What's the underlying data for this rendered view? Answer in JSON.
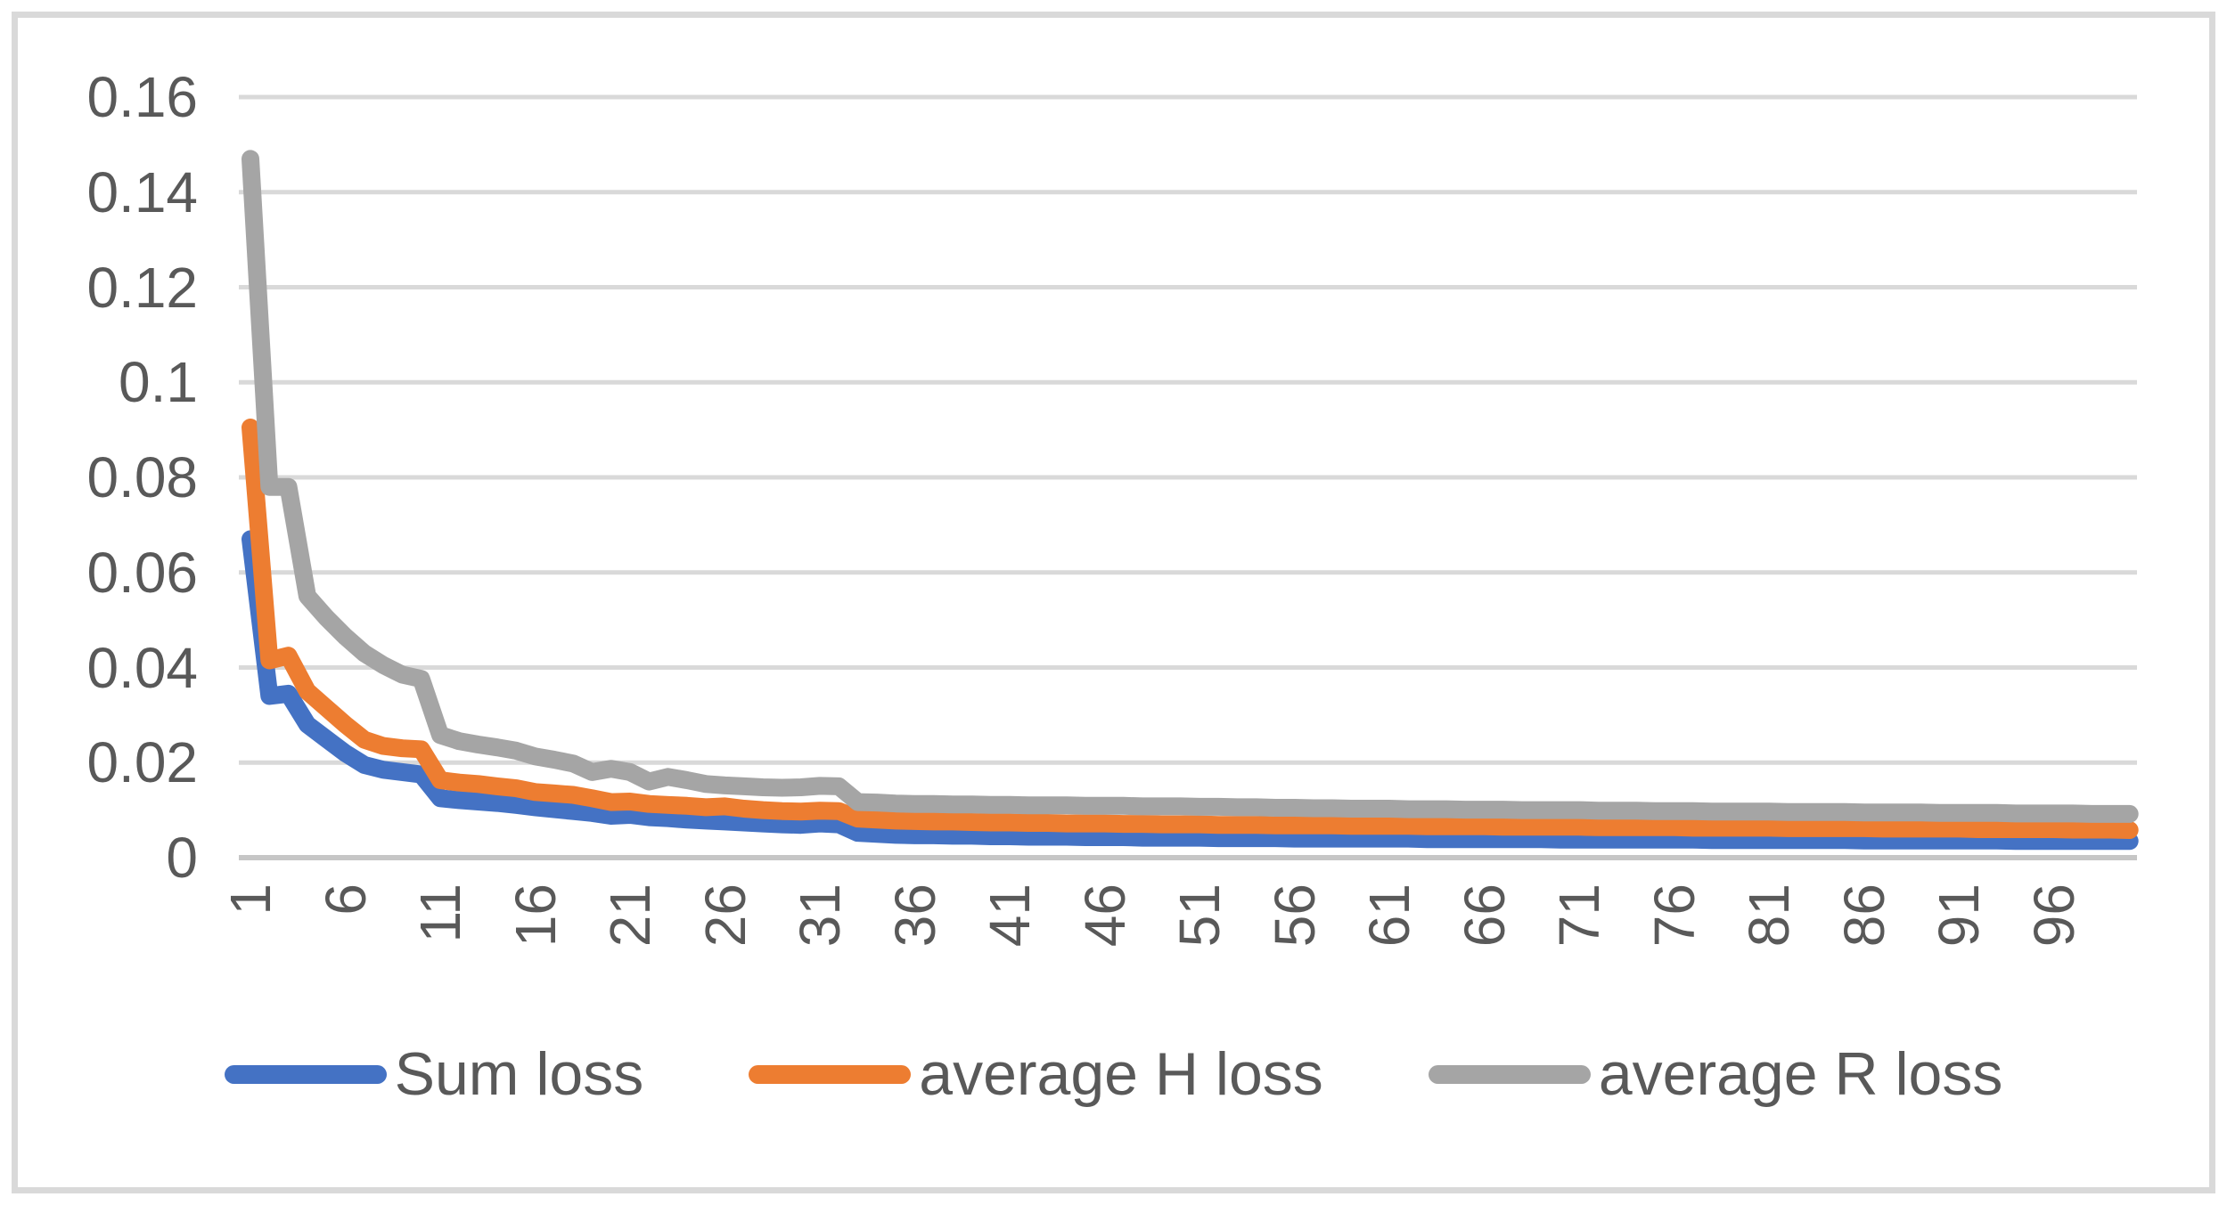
{
  "chart_data": {
    "type": "line",
    "title": "",
    "xlabel": "",
    "ylabel": "",
    "x_start": 1,
    "x_step": 1,
    "x_count": 100,
    "x_tick_labels": [
      "1",
      "6",
      "11",
      "16",
      "21",
      "26",
      "31",
      "36",
      "41",
      "46",
      "51",
      "56",
      "61",
      "66",
      "71",
      "76",
      "81",
      "86",
      "91",
      "96"
    ],
    "y_tick_labels": [
      "0",
      "0.02",
      "0.04",
      "0.06",
      "0.08",
      "0.1",
      "0.12",
      "0.14",
      "0.16"
    ],
    "ylim": [
      0,
      0.16
    ],
    "grid": "horizontal",
    "legend_position": "bottom",
    "background_color": "#FFFFFF",
    "gridline_color": "#D9D9D9",
    "axis_line_color": "#C6C6C6",
    "axis_text_color": "#595959",
    "frame_border_color": "#D9D9D9",
    "series": [
      {
        "name": "Sum loss",
        "color": "#4472C4",
        "values": [
          0.067,
          0.034,
          0.0345,
          0.028,
          0.025,
          0.022,
          0.0195,
          0.0185,
          0.018,
          0.0175,
          0.0125,
          0.0121,
          0.0118,
          0.0115,
          0.0111,
          0.0106,
          0.0102,
          0.0098,
          0.0094,
          0.0088,
          0.009,
          0.0085,
          0.0083,
          0.008,
          0.0078,
          0.0076,
          0.0074,
          0.0072,
          0.007,
          0.0069,
          0.0072,
          0.007,
          0.0052,
          0.005,
          0.0048,
          0.0047,
          0.0047,
          0.0046,
          0.0046,
          0.0045,
          0.0045,
          0.0044,
          0.0044,
          0.0044,
          0.0043,
          0.0043,
          0.0043,
          0.0042,
          0.0042,
          0.0042,
          0.0042,
          0.0041,
          0.0041,
          0.0041,
          0.0041,
          0.004,
          0.004,
          0.004,
          0.004,
          0.004,
          0.004,
          0.004,
          0.0039,
          0.0039,
          0.0039,
          0.0039,
          0.0039,
          0.0039,
          0.0039,
          0.0038,
          0.0038,
          0.0038,
          0.0038,
          0.0038,
          0.0038,
          0.0038,
          0.0038,
          0.0037,
          0.0037,
          0.0037,
          0.0037,
          0.0037,
          0.0037,
          0.0037,
          0.0037,
          0.0036,
          0.0036,
          0.0036,
          0.0036,
          0.0036,
          0.0036,
          0.0036,
          0.0036,
          0.0035,
          0.0035,
          0.0035,
          0.0035,
          0.0035,
          0.0035,
          0.0035
        ]
      },
      {
        "name": "average H loss",
        "color": "#ED7D31",
        "values": [
          0.0905,
          0.0415,
          0.0425,
          0.035,
          0.0315,
          0.028,
          0.0248,
          0.0235,
          0.023,
          0.0228,
          0.0163,
          0.0158,
          0.0155,
          0.015,
          0.0146,
          0.0138,
          0.0135,
          0.0132,
          0.0125,
          0.0117,
          0.0118,
          0.0113,
          0.0111,
          0.0109,
          0.0106,
          0.0108,
          0.0103,
          0.01,
          0.0098,
          0.0097,
          0.0099,
          0.0098,
          0.0082,
          0.008,
          0.0078,
          0.0077,
          0.0076,
          0.0076,
          0.0075,
          0.0074,
          0.0074,
          0.0073,
          0.0073,
          0.0072,
          0.0072,
          0.0072,
          0.0071,
          0.0071,
          0.007,
          0.007,
          0.007,
          0.0069,
          0.0069,
          0.0069,
          0.0068,
          0.0068,
          0.0068,
          0.0068,
          0.0067,
          0.0067,
          0.0067,
          0.0067,
          0.0066,
          0.0066,
          0.0066,
          0.0066,
          0.0065,
          0.0065,
          0.0065,
          0.0065,
          0.0065,
          0.0064,
          0.0064,
          0.0064,
          0.0064,
          0.0064,
          0.0063,
          0.0063,
          0.0063,
          0.0063,
          0.0063,
          0.0062,
          0.0062,
          0.0062,
          0.0062,
          0.0062,
          0.0061,
          0.0061,
          0.0061,
          0.0061,
          0.0061,
          0.006,
          0.006,
          0.006,
          0.006,
          0.006,
          0.0059,
          0.0059,
          0.0059,
          0.0058
        ]
      },
      {
        "name": "average R loss",
        "color": "#A5A5A5",
        "values": [
          0.147,
          0.078,
          0.078,
          0.055,
          0.0505,
          0.0465,
          0.043,
          0.0405,
          0.0385,
          0.0376,
          0.0258,
          0.0245,
          0.0238,
          0.0232,
          0.0225,
          0.0213,
          0.0206,
          0.0198,
          0.018,
          0.0187,
          0.018,
          0.016,
          0.017,
          0.0163,
          0.0155,
          0.0152,
          0.015,
          0.0148,
          0.0147,
          0.0148,
          0.0151,
          0.015,
          0.0117,
          0.0116,
          0.0114,
          0.0113,
          0.0113,
          0.0112,
          0.0112,
          0.0111,
          0.0111,
          0.011,
          0.011,
          0.011,
          0.0109,
          0.0109,
          0.0109,
          0.0108,
          0.0108,
          0.0108,
          0.0107,
          0.0107,
          0.0106,
          0.0106,
          0.0105,
          0.0105,
          0.0104,
          0.0104,
          0.0103,
          0.0103,
          0.0103,
          0.0102,
          0.0102,
          0.0102,
          0.0101,
          0.0101,
          0.0101,
          0.01,
          0.01,
          0.01,
          0.01,
          0.0099,
          0.0099,
          0.0099,
          0.0098,
          0.0098,
          0.0098,
          0.0097,
          0.0097,
          0.0097,
          0.0097,
          0.0096,
          0.0096,
          0.0096,
          0.0096,
          0.0095,
          0.0095,
          0.0095,
          0.0095,
          0.0094,
          0.0094,
          0.0094,
          0.0094,
          0.0093,
          0.0093,
          0.0093,
          0.0093,
          0.0092,
          0.0092,
          0.0092
        ]
      }
    ]
  }
}
